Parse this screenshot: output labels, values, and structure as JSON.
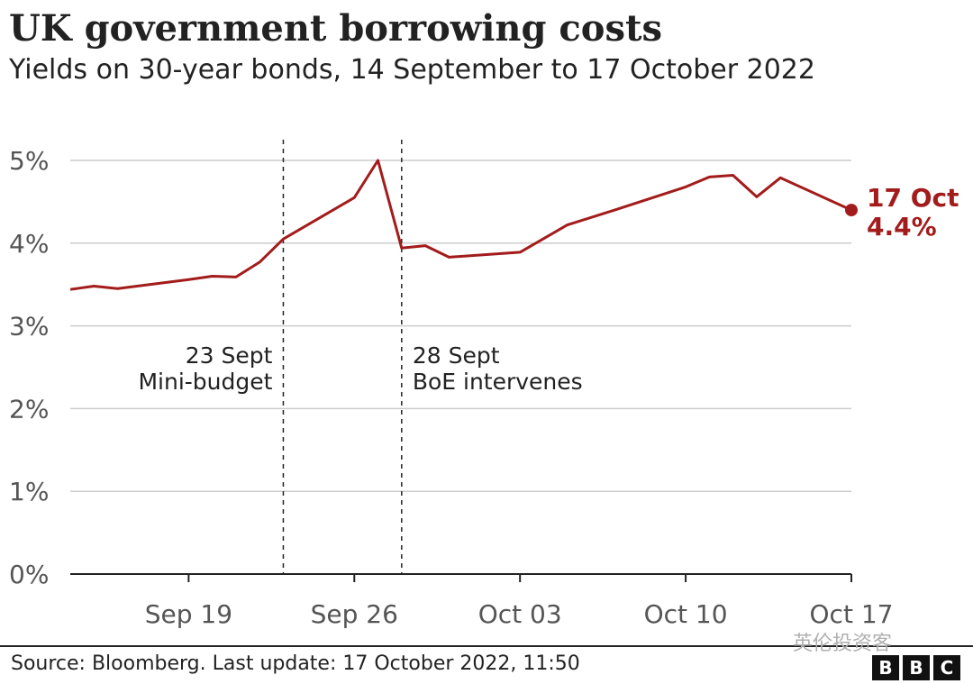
{
  "title": "UK government borrowing costs",
  "subtitle": "Yields on 30-year bonds, 14 September to 17 October 2022",
  "source": "Source: Bloomberg. Last update: 17 October 2022, 11:50",
  "watermark": "英伦投资客",
  "logo": [
    "B",
    "B",
    "C"
  ],
  "colors": {
    "line": "#a31c1c",
    "grid": "#cccccc",
    "text": "#555555",
    "axis": "#222222"
  },
  "chart_data": {
    "type": "line",
    "title": "UK government borrowing costs",
    "subtitle": "Yields on 30-year bonds, 14 September to 17 October 2022",
    "xlabel": "",
    "ylabel": "",
    "y_ticks": [
      "0%",
      "1%",
      "2%",
      "3%",
      "4%",
      "5%"
    ],
    "ylim": [
      0,
      5
    ],
    "x_ticks": [
      {
        "label": "Sep 19",
        "day": 19
      },
      {
        "label": "Sep 26",
        "day": 26
      },
      {
        "label": "Oct 03",
        "day": 33
      },
      {
        "label": "Oct 10",
        "day": 40
      },
      {
        "label": "Oct 17",
        "day": 47
      }
    ],
    "grid": true,
    "series": [
      {
        "values": [
          [
            14,
            3.44
          ],
          [
            15,
            3.48
          ],
          [
            16,
            3.45
          ],
          [
            19,
            3.56
          ],
          [
            20,
            3.6
          ],
          [
            21,
            3.59
          ],
          [
            22,
            3.77
          ],
          [
            23,
            4.05
          ],
          [
            26,
            4.55
          ],
          [
            27,
            5.0
          ],
          [
            28,
            3.94
          ],
          [
            29,
            3.97
          ],
          [
            30,
            3.83
          ],
          [
            33,
            3.89
          ],
          [
            35,
            4.22
          ],
          [
            37,
            4.4
          ],
          [
            40,
            4.68
          ],
          [
            41,
            4.8
          ],
          [
            42,
            4.82
          ],
          [
            43,
            4.56
          ],
          [
            44,
            4.79
          ],
          [
            47,
            4.4
          ]
        ]
      }
    ],
    "annotations": [
      {
        "day": 23,
        "lines": [
          "23 Sept",
          "Mini-budget"
        ]
      },
      {
        "day": 28,
        "lines": [
          "28 Sept",
          "BoE intervenes"
        ]
      }
    ],
    "end_label": [
      "17 Oct",
      "4.4%"
    ]
  }
}
